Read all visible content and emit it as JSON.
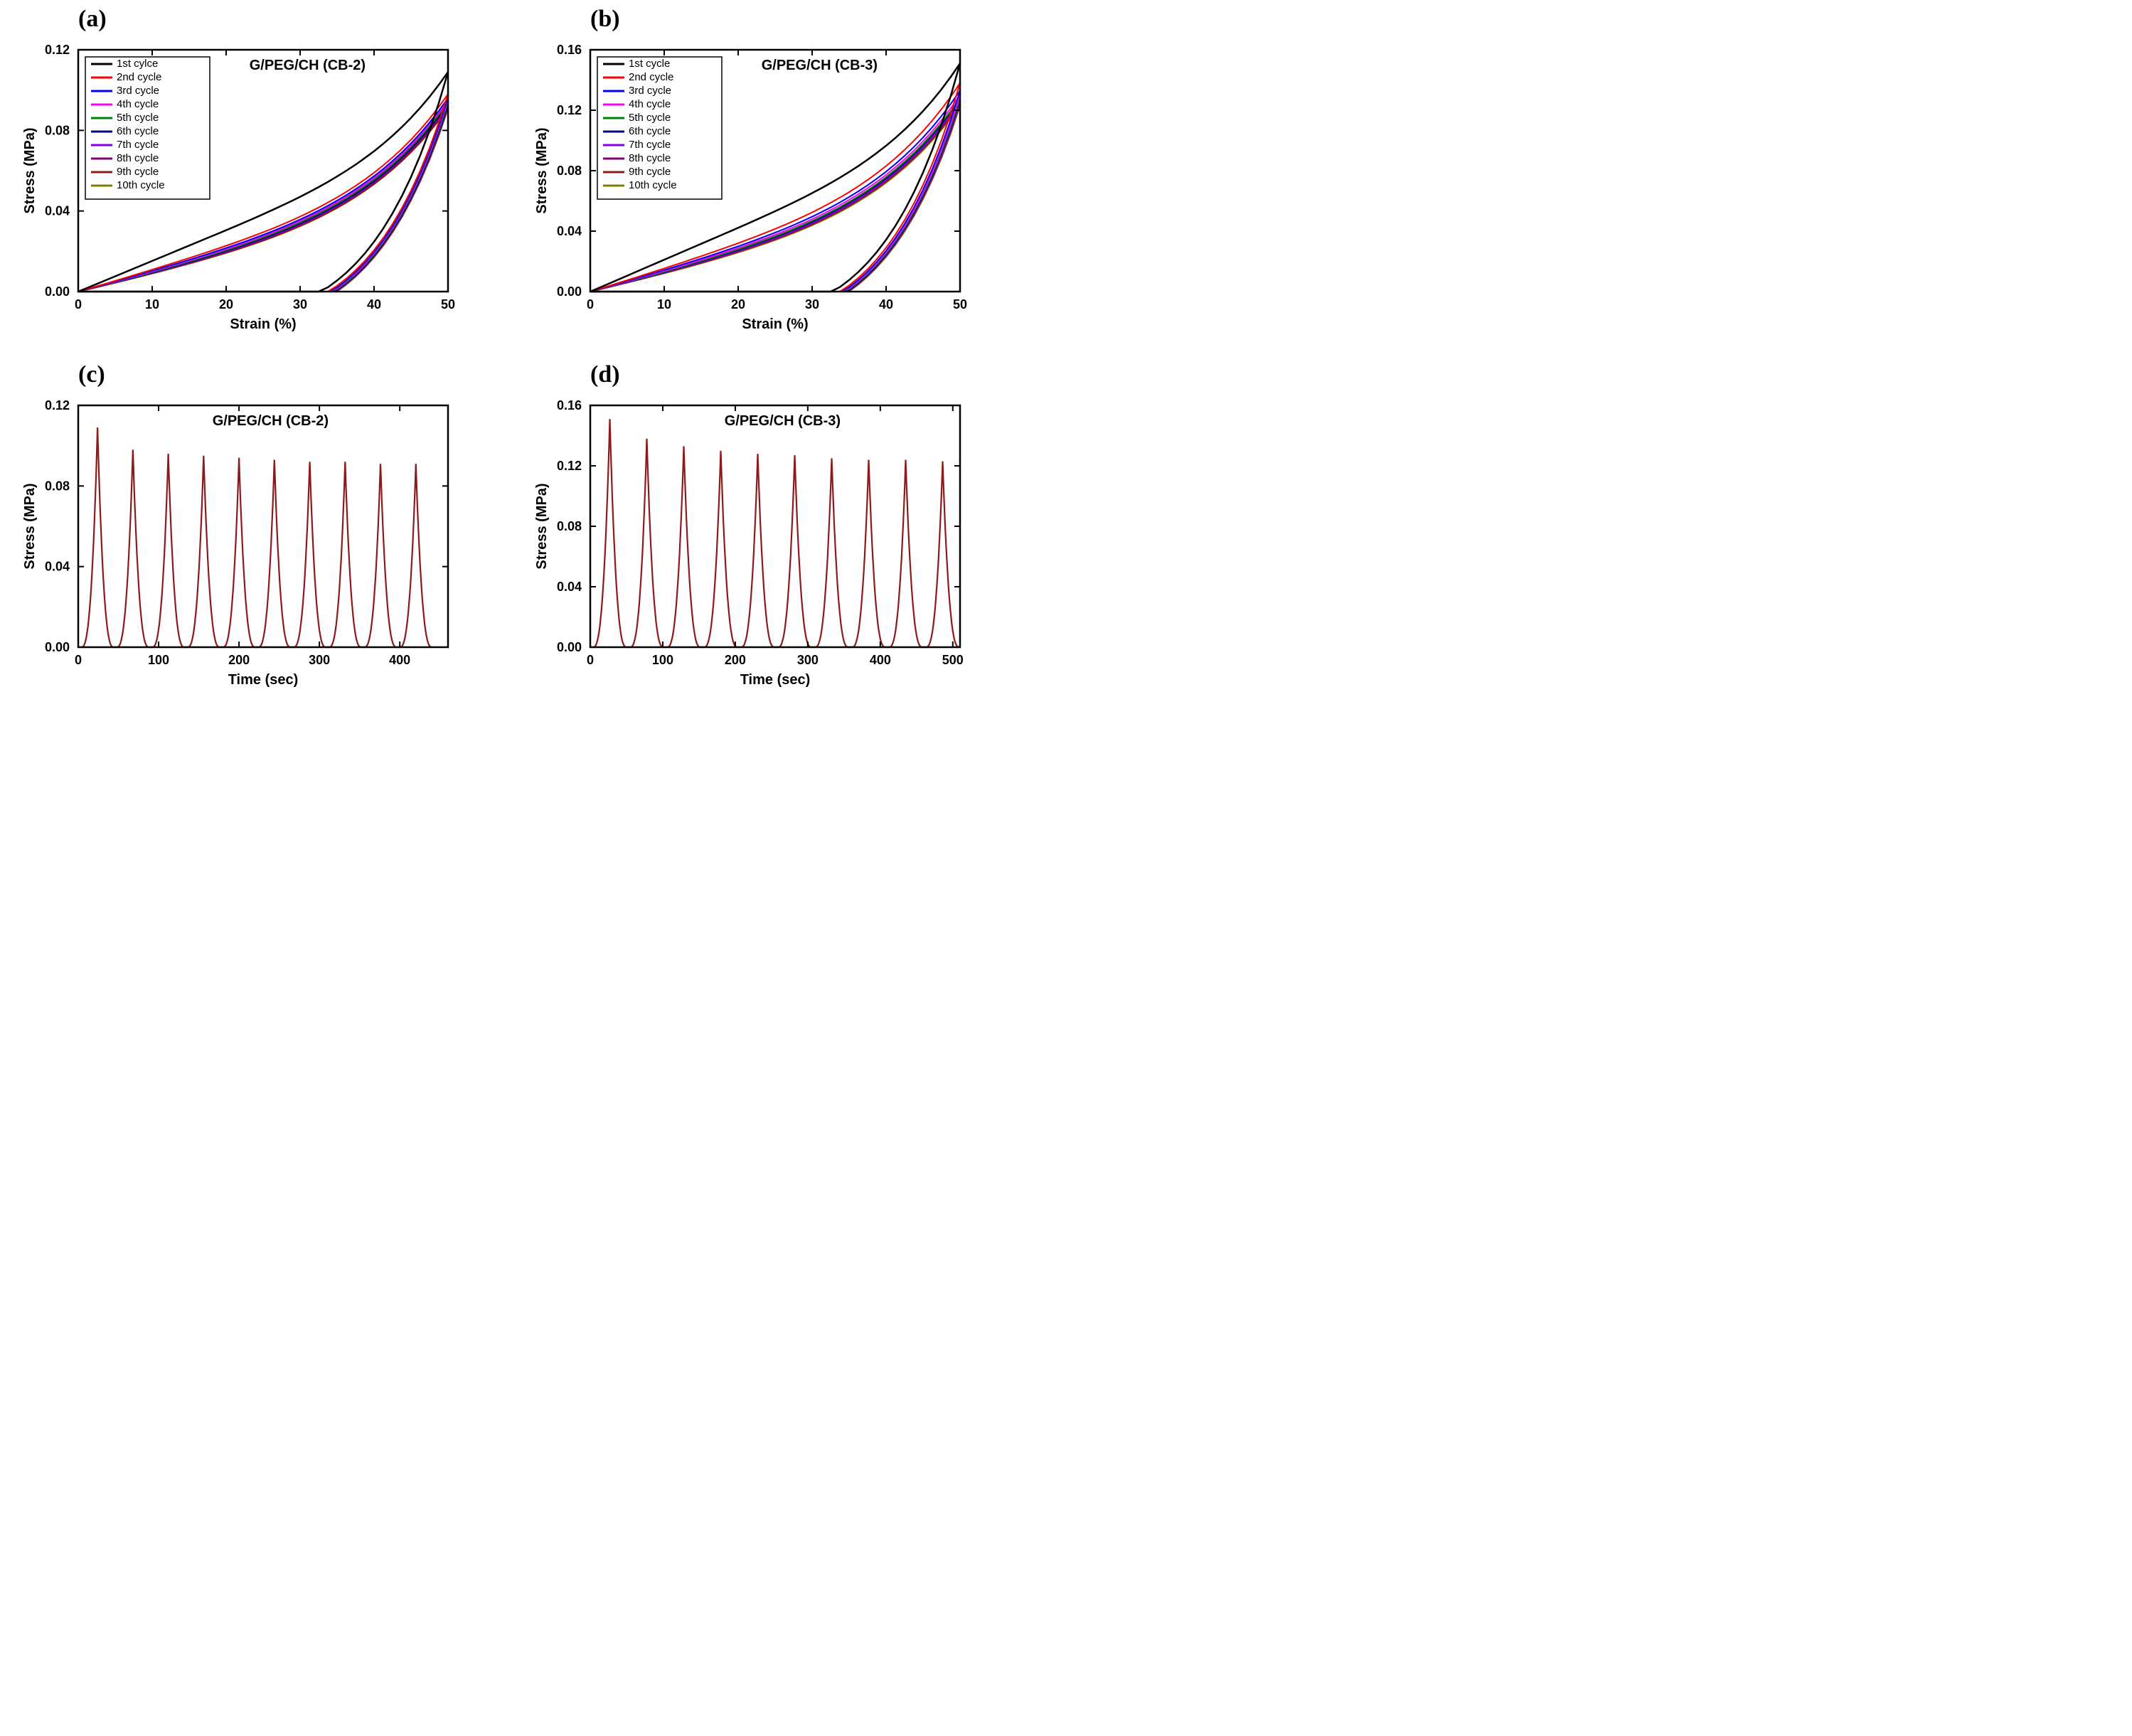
{
  "figure": {
    "background": "#ffffff",
    "panels": {
      "a": {
        "label": "(a)",
        "title": "G/PEG/CH (CB-2)",
        "type": "line-hysteresis",
        "xlabel": "Strain (%)",
        "ylabel": "Stress (MPa)",
        "xlim": [
          0,
          50
        ],
        "ylim": [
          0,
          0.12
        ],
        "xticks": [
          0,
          10,
          20,
          30,
          40,
          50
        ],
        "yticks": [
          0.0,
          0.04,
          0.08,
          0.12
        ],
        "ytick_labels": [
          "0.00",
          "0.04",
          "0.08",
          "0.12"
        ],
        "axis_color": "#000000",
        "line_width": 2,
        "legend": {
          "position": "upper-left",
          "border_color": "#000000",
          "items": [
            {
              "label": "1st cylce",
              "color": "#000000"
            },
            {
              "label": "2nd cycle",
              "color": "#ff0000"
            },
            {
              "label": "3rd cycle",
              "color": "#0000ff"
            },
            {
              "label": "4th cycle",
              "color": "#ff00ff"
            },
            {
              "label": "5th cycle",
              "color": "#008000"
            },
            {
              "label": "6th cycle",
              "color": "#000080"
            },
            {
              "label": "7th cycle",
              "color": "#8000ff"
            },
            {
              "label": "8th cycle",
              "color": "#800080"
            },
            {
              "label": "9th cycle",
              "color": "#8b1a1a"
            },
            {
              "label": "10th cycle",
              "color": "#808000"
            }
          ]
        },
        "curves": {
          "c1": {
            "color": "#000000",
            "peak": 0.109,
            "load_scale": 1.0,
            "unload_scale": 0.5
          },
          "c2": {
            "color": "#ff0000",
            "peak": 0.098,
            "load_scale": 0.72,
            "unload_scale": 0.45
          },
          "c3": {
            "color": "#0000ff",
            "peak": 0.096,
            "load_scale": 0.68,
            "unload_scale": 0.43
          },
          "c4": {
            "color": "#ff00ff",
            "peak": 0.095,
            "load_scale": 0.66,
            "unload_scale": 0.42
          },
          "c5": {
            "color": "#008000",
            "peak": 0.094,
            "load_scale": 0.64,
            "unload_scale": 0.41
          },
          "c6": {
            "color": "#000080",
            "peak": 0.093,
            "load_scale": 0.63,
            "unload_scale": 0.4
          },
          "c7": {
            "color": "#8000ff",
            "peak": 0.093,
            "load_scale": 0.62,
            "unload_scale": 0.4
          },
          "c8": {
            "color": "#800080",
            "peak": 0.092,
            "load_scale": 0.61,
            "unload_scale": 0.39
          },
          "c9": {
            "color": "#8b1a1a",
            "peak": 0.091,
            "load_scale": 0.6,
            "unload_scale": 0.39
          },
          "c10": {
            "color": "#808000",
            "peak": 0.091,
            "load_scale": 0.59,
            "unload_scale": 0.38
          }
        }
      },
      "b": {
        "label": "(b)",
        "title": "G/PEG/CH (CB-3)",
        "type": "line-hysteresis",
        "xlabel": "Strain (%)",
        "ylabel": "Stress (MPa)",
        "xlim": [
          0,
          50
        ],
        "ylim": [
          0,
          0.16
        ],
        "xticks": [
          0,
          10,
          20,
          30,
          40,
          50
        ],
        "yticks": [
          0.0,
          0.04,
          0.08,
          0.12,
          0.16
        ],
        "ytick_labels": [
          "0.00",
          "0.04",
          "0.08",
          "0.12",
          "0.16"
        ],
        "axis_color": "#000000",
        "line_width": 2,
        "legend": {
          "position": "upper-left",
          "border_color": "#000000",
          "items": [
            {
              "label": "1st cycle",
              "color": "#000000"
            },
            {
              "label": "2nd cycle",
              "color": "#ff0000"
            },
            {
              "label": "3rd cycle",
              "color": "#0000ff"
            },
            {
              "label": "4th cycle",
              "color": "#ff00ff"
            },
            {
              "label": "5th cycle",
              "color": "#008000"
            },
            {
              "label": "6th cycle",
              "color": "#000080"
            },
            {
              "label": "7th cycle",
              "color": "#8000ff"
            },
            {
              "label": "8th cycle",
              "color": "#800080"
            },
            {
              "label": "9th cycle",
              "color": "#8b1a1a"
            },
            {
              "label": "10th cycle",
              "color": "#808000"
            }
          ]
        },
        "curves": {
          "c1": {
            "color": "#000000",
            "peak": 0.151,
            "load_scale": 1.0,
            "unload_scale": 0.5
          },
          "c2": {
            "color": "#ff0000",
            "peak": 0.138,
            "load_scale": 0.72,
            "unload_scale": 0.45
          },
          "c3": {
            "color": "#0000ff",
            "peak": 0.133,
            "load_scale": 0.68,
            "unload_scale": 0.43
          },
          "c4": {
            "color": "#ff00ff",
            "peak": 0.13,
            "load_scale": 0.66,
            "unload_scale": 0.42
          },
          "c5": {
            "color": "#008000",
            "peak": 0.128,
            "load_scale": 0.64,
            "unload_scale": 0.41
          },
          "c6": {
            "color": "#000080",
            "peak": 0.127,
            "load_scale": 0.63,
            "unload_scale": 0.4
          },
          "c7": {
            "color": "#8000ff",
            "peak": 0.126,
            "load_scale": 0.62,
            "unload_scale": 0.4
          },
          "c8": {
            "color": "#800080",
            "peak": 0.125,
            "load_scale": 0.61,
            "unload_scale": 0.39
          },
          "c9": {
            "color": "#8b1a1a",
            "peak": 0.124,
            "load_scale": 0.6,
            "unload_scale": 0.39
          },
          "c10": {
            "color": "#808000",
            "peak": 0.123,
            "load_scale": 0.59,
            "unload_scale": 0.38
          }
        }
      },
      "c": {
        "label": "(c)",
        "title": "G/PEG/CH (CB-2)",
        "type": "line-time",
        "xlabel": "Time (sec)",
        "ylabel": "Stress (MPa)",
        "xlim": [
          0,
          460
        ],
        "ylim": [
          0,
          0.12
        ],
        "xticks": [
          0,
          100,
          200,
          300,
          400
        ],
        "yticks": [
          0.0,
          0.04,
          0.08,
          0.12
        ],
        "ytick_labels": [
          "0.00",
          "0.04",
          "0.08",
          "0.12"
        ],
        "axis_color": "#000000",
        "line_color": "#8b1a1a",
        "line_width": 2,
        "peaks": [
          {
            "t": 24,
            "s": 0.109
          },
          {
            "t": 68,
            "s": 0.098
          },
          {
            "t": 112,
            "s": 0.096
          },
          {
            "t": 156,
            "s": 0.095
          },
          {
            "t": 200,
            "s": 0.094
          },
          {
            "t": 244,
            "s": 0.093
          },
          {
            "t": 288,
            "s": 0.092
          },
          {
            "t": 332,
            "s": 0.092
          },
          {
            "t": 376,
            "s": 0.091
          },
          {
            "t": 420,
            "s": 0.091
          }
        ],
        "half_width": 20
      },
      "d": {
        "label": "(d)",
        "title": "G/PEG/CH (CB-3)",
        "type": "line-time",
        "xlabel": "Time (sec)",
        "ylabel": "Stress (MPa)",
        "xlim": [
          0,
          510
        ],
        "ylim": [
          0,
          0.16
        ],
        "xticks": [
          0,
          100,
          200,
          300,
          400,
          500
        ],
        "yticks": [
          0.0,
          0.04,
          0.08,
          0.12,
          0.16
        ],
        "ytick_labels": [
          "0.00",
          "0.04",
          "0.08",
          "0.12",
          "0.16"
        ],
        "axis_color": "#000000",
        "line_color": "#8b1a1a",
        "line_width": 2,
        "peaks": [
          {
            "t": 27,
            "s": 0.151
          },
          {
            "t": 78,
            "s": 0.138
          },
          {
            "t": 129,
            "s": 0.133
          },
          {
            "t": 180,
            "s": 0.13
          },
          {
            "t": 231,
            "s": 0.128
          },
          {
            "t": 282,
            "s": 0.127
          },
          {
            "t": 333,
            "s": 0.125
          },
          {
            "t": 384,
            "s": 0.124
          },
          {
            "t": 435,
            "s": 0.124
          },
          {
            "t": 486,
            "s": 0.123
          }
        ],
        "half_width": 23
      }
    },
    "fonts": {
      "label_size": 34,
      "axis_title_size": 20,
      "tick_size": 18,
      "legend_size": 15,
      "chart_title_size": 20
    }
  }
}
